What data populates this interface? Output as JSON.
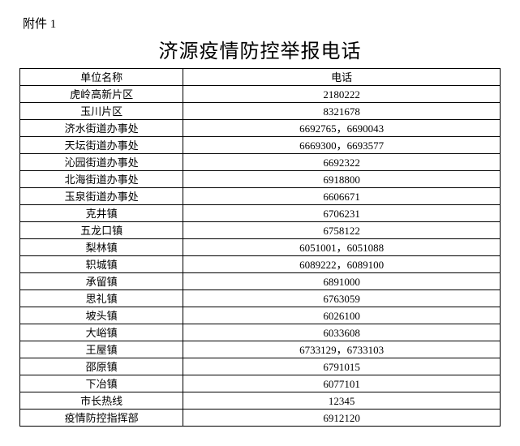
{
  "attachment_label": "附件 1",
  "title": "济源疫情防控举报电话",
  "table": {
    "columns": [
      "单位名称",
      "电话"
    ],
    "rows": [
      [
        "虎岭高新片区",
        "2180222"
      ],
      [
        "玉川片区",
        "8321678"
      ],
      [
        "济水街道办事处",
        "6692765，6690043"
      ],
      [
        "天坛街道办事处",
        "6669300，6693577"
      ],
      [
        "沁园街道办事处",
        "6692322"
      ],
      [
        "北海街道办事处",
        "6918800"
      ],
      [
        "玉泉街道办事处",
        "6606671"
      ],
      [
        "克井镇",
        "6706231"
      ],
      [
        "五龙口镇",
        "6758122"
      ],
      [
        "梨林镇",
        "6051001，6051088"
      ],
      [
        "轵城镇",
        "6089222，6089100"
      ],
      [
        "承留镇",
        "6891000"
      ],
      [
        "思礼镇",
        "6763059"
      ],
      [
        "坡头镇",
        "6026100"
      ],
      [
        "大峪镇",
        "6033608"
      ],
      [
        "王屋镇",
        "6733129，6733103"
      ],
      [
        "邵原镇",
        "6791015"
      ],
      [
        "下冶镇",
        "6077101"
      ],
      [
        "市长热线",
        "12345"
      ],
      [
        "疫情防控指挥部",
        "6912120"
      ]
    ]
  },
  "colors": {
    "text": "#000000",
    "background": "#ffffff",
    "border": "#000000"
  }
}
